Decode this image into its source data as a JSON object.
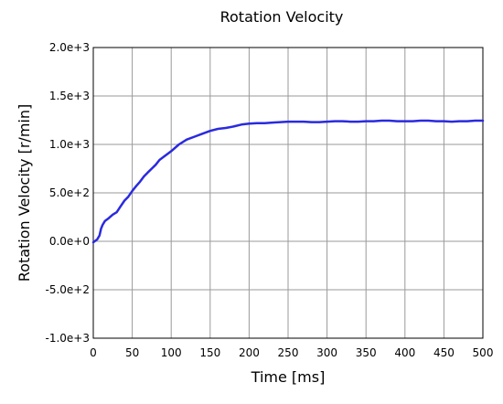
{
  "chart_data": {
    "type": "line",
    "title": "Rotation Velocity",
    "xlabel": "Time [ms]",
    "ylabel": "Rotation Velocity [r/min]",
    "xlim": [
      0,
      500
    ],
    "ylim": [
      -1000,
      2000
    ],
    "x_ticks": [
      0,
      50,
      100,
      150,
      200,
      250,
      300,
      350,
      400,
      450,
      500
    ],
    "x_tick_labels": [
      "0",
      "50",
      "100",
      "150",
      "200",
      "250",
      "300",
      "350",
      "400",
      "450",
      "500"
    ],
    "y_ticks": [
      -1000,
      -500,
      0,
      500,
      1000,
      1500,
      2000
    ],
    "y_tick_labels": [
      "-1.0e+3",
      "-5.0e+2",
      "0.0e+0",
      "5.0e+2",
      "1.0e+3",
      "1.5e+3",
      "2.0e+3"
    ],
    "grid": true,
    "legend": "none",
    "series": [
      {
        "color": "#2a2adf",
        "x": [
          0,
          5,
          8,
          10,
          12,
          15,
          20,
          25,
          30,
          35,
          40,
          45,
          50,
          55,
          60,
          65,
          70,
          75,
          80,
          85,
          90,
          95,
          100,
          110,
          120,
          130,
          140,
          150,
          160,
          170,
          180,
          190,
          200,
          210,
          220,
          230,
          240,
          250,
          260,
          270,
          280,
          290,
          300,
          310,
          320,
          330,
          340,
          350,
          360,
          370,
          380,
          390,
          400,
          410,
          420,
          430,
          440,
          450,
          460,
          470,
          480,
          490,
          500
        ],
        "y": [
          -10,
          20,
          60,
          130,
          170,
          210,
          240,
          275,
          300,
          360,
          420,
          460,
          520,
          570,
          615,
          670,
          710,
          750,
          790,
          840,
          870,
          900,
          930,
          1000,
          1050,
          1080,
          1110,
          1140,
          1160,
          1170,
          1185,
          1205,
          1215,
          1220,
          1220,
          1225,
          1230,
          1235,
          1235,
          1235,
          1230,
          1230,
          1235,
          1240,
          1240,
          1235,
          1235,
          1240,
          1240,
          1245,
          1245,
          1240,
          1240,
          1240,
          1245,
          1245,
          1240,
          1240,
          1235,
          1240,
          1240,
          1245,
          1245
        ]
      }
    ]
  }
}
